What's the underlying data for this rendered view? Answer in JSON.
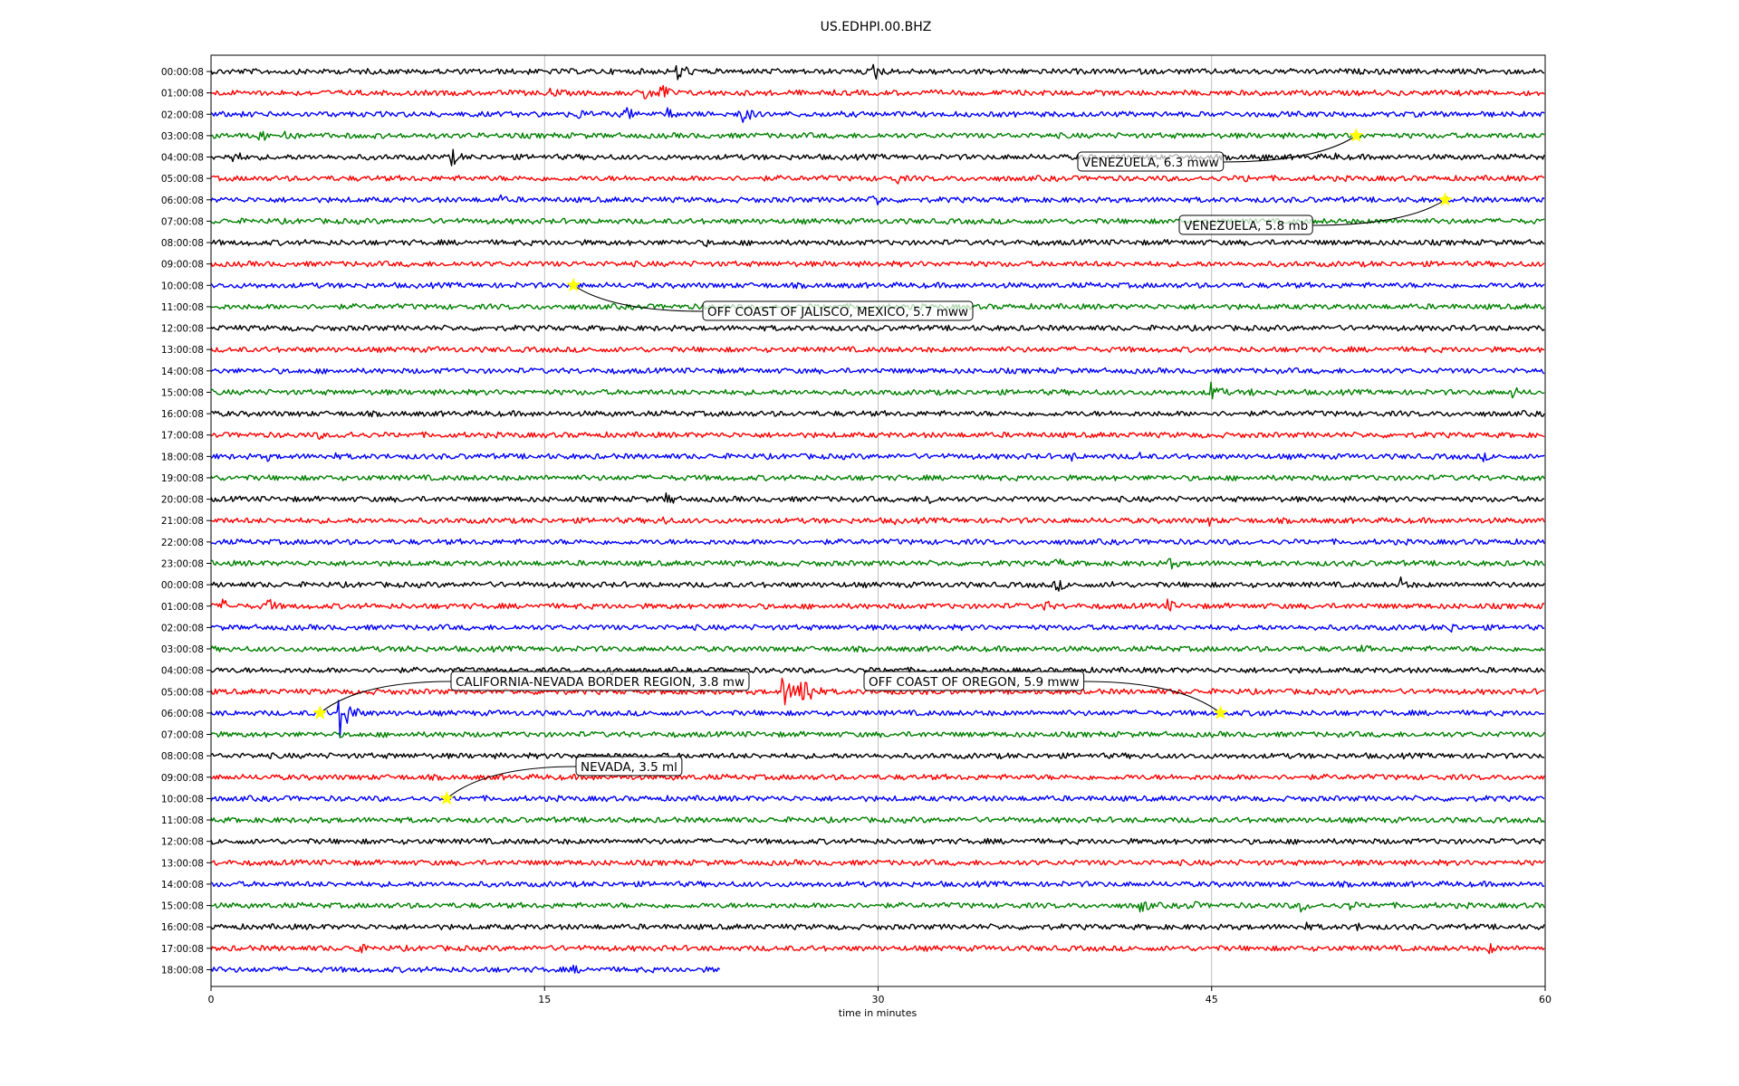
{
  "chart_data": {
    "type": "line",
    "title": "US.EDHPI.00.BHZ",
    "xlabel": "time in minutes",
    "xlim": [
      0,
      60
    ],
    "x_ticks": [
      "0",
      "15",
      "30",
      "45",
      "60"
    ],
    "grid": true,
    "trace_colors": [
      "#000000",
      "#ff0000",
      "#0000ff",
      "#008000"
    ],
    "marker_color": "#ffff00",
    "rows": [
      "00:00:08",
      "01:00:08",
      "02:00:08",
      "03:00:08",
      "04:00:08",
      "05:00:08",
      "06:00:08",
      "07:00:08",
      "08:00:08",
      "09:00:08",
      "10:00:08",
      "11:00:08",
      "12:00:08",
      "13:00:08",
      "14:00:08",
      "15:00:08",
      "16:00:08",
      "17:00:08",
      "18:00:08",
      "19:00:08",
      "20:00:08",
      "21:00:08",
      "22:00:08",
      "23:00:08",
      "00:00:08",
      "01:00:08",
      "02:00:08",
      "03:00:08",
      "04:00:08",
      "05:00:08",
      "06:00:08",
      "07:00:08",
      "08:00:08",
      "09:00:08",
      "10:00:08",
      "11:00:08",
      "12:00:08",
      "13:00:08",
      "14:00:08",
      "15:00:08",
      "16:00:08",
      "17:00:08",
      "18:00:08"
    ],
    "last_row_end_minute": 22.9,
    "events": [
      {
        "row": 3,
        "minute": 51.5,
        "label": "VENEZUELA, 6.3 mww"
      },
      {
        "row": 6,
        "minute": 55.5,
        "label": "VENEZUELA, 5.8 mb"
      },
      {
        "row": 10,
        "minute": 16.3,
        "label": "OFF COAST OF JALISCO, MEXICO, 5.7 mww"
      },
      {
        "row": 30,
        "minute": 4.9,
        "label": "CALIFORNIA-NEVADA BORDER REGION, 3.8 mw"
      },
      {
        "row": 30,
        "minute": 45.4,
        "label": "OFF COAST OF OREGON, 5.9 mww"
      },
      {
        "row": 34,
        "minute": 10.6,
        "label": "NEVADA, 3.5 ml"
      }
    ],
    "bursts": [
      {
        "row": 0,
        "minute": 21.0,
        "amp": 14
      },
      {
        "row": 0,
        "minute": 29.8,
        "amp": 12
      },
      {
        "row": 0,
        "minute": 32.6,
        "amp": 6
      },
      {
        "row": 1,
        "minute": 15.3,
        "amp": 8
      },
      {
        "row": 1,
        "minute": 19.5,
        "amp": 10
      },
      {
        "row": 1,
        "minute": 20.2,
        "amp": 14
      },
      {
        "row": 2,
        "minute": 16.5,
        "amp": 8
      },
      {
        "row": 2,
        "minute": 18.6,
        "amp": 10
      },
      {
        "row": 2,
        "minute": 20.5,
        "amp": 8
      },
      {
        "row": 2,
        "minute": 23.8,
        "amp": 14
      },
      {
        "row": 3,
        "minute": 2.2,
        "amp": 8
      },
      {
        "row": 3,
        "minute": 3.3,
        "amp": 9
      },
      {
        "row": 4,
        "minute": 1.0,
        "amp": 9
      },
      {
        "row": 4,
        "minute": 10.8,
        "amp": 11
      },
      {
        "row": 4,
        "minute": 47.2,
        "amp": 6
      },
      {
        "row": 4,
        "minute": 50.5,
        "amp": 6
      },
      {
        "row": 5,
        "minute": 30.8,
        "amp": 8
      },
      {
        "row": 5,
        "minute": 46.5,
        "amp": 6
      },
      {
        "row": 6,
        "minute": 13.0,
        "amp": 6
      },
      {
        "row": 6,
        "minute": 29.8,
        "amp": 10
      },
      {
        "row": 8,
        "minute": 22.3,
        "amp": 5
      },
      {
        "row": 15,
        "minute": 45.0,
        "amp": 14
      },
      {
        "row": 15,
        "minute": 46.8,
        "amp": 6
      },
      {
        "row": 15,
        "minute": 58.5,
        "amp": 8
      },
      {
        "row": 17,
        "minute": 4.8,
        "amp": 6
      },
      {
        "row": 17,
        "minute": 6.0,
        "amp": 7
      },
      {
        "row": 18,
        "minute": 2.5,
        "amp": 6
      },
      {
        "row": 18,
        "minute": 5.4,
        "amp": 6
      },
      {
        "row": 18,
        "minute": 38.7,
        "amp": 6
      },
      {
        "row": 18,
        "minute": 41.7,
        "amp": 6
      },
      {
        "row": 18,
        "minute": 57.2,
        "amp": 6
      },
      {
        "row": 20,
        "minute": 20.5,
        "amp": 9
      },
      {
        "row": 20,
        "minute": 32.2,
        "amp": 9
      },
      {
        "row": 21,
        "minute": 20.3,
        "amp": 7
      },
      {
        "row": 21,
        "minute": 30.8,
        "amp": 6
      },
      {
        "row": 21,
        "minute": 44.9,
        "amp": 7
      },
      {
        "row": 23,
        "minute": 38.0,
        "amp": 7
      },
      {
        "row": 23,
        "minute": 43.1,
        "amp": 8
      },
      {
        "row": 24,
        "minute": 38.0,
        "amp": 9
      },
      {
        "row": 24,
        "minute": 40.5,
        "amp": 6
      },
      {
        "row": 24,
        "minute": 53.5,
        "amp": 9
      },
      {
        "row": 25,
        "minute": 0.5,
        "amp": 9
      },
      {
        "row": 25,
        "minute": 2.5,
        "amp": 11
      },
      {
        "row": 25,
        "minute": 37.5,
        "amp": 8
      },
      {
        "row": 25,
        "minute": 43.0,
        "amp": 9
      },
      {
        "row": 26,
        "minute": 55.7,
        "amp": 8
      },
      {
        "row": 27,
        "minute": 8.8,
        "amp": 7
      },
      {
        "row": 27,
        "minute": 51.8,
        "amp": 6
      },
      {
        "row": 28,
        "minute": 17.8,
        "amp": 12
      },
      {
        "row": 29,
        "minute": 25.7,
        "amp": 20
      },
      {
        "row": 29,
        "minute": 26.5,
        "amp": 30
      },
      {
        "row": 30,
        "minute": 5.8,
        "amp": 28
      },
      {
        "row": 30,
        "minute": 47.2,
        "amp": 6
      },
      {
        "row": 39,
        "minute": 41.8,
        "amp": 10
      },
      {
        "row": 39,
        "minute": 44.0,
        "amp": 8
      },
      {
        "row": 39,
        "minute": 49.0,
        "amp": 8
      },
      {
        "row": 39,
        "minute": 51.2,
        "amp": 7
      },
      {
        "row": 40,
        "minute": 49.2,
        "amp": 6
      },
      {
        "row": 40,
        "minute": 51.5,
        "amp": 6
      },
      {
        "row": 41,
        "minute": 6.5,
        "amp": 9
      },
      {
        "row": 41,
        "minute": 57.5,
        "amp": 7
      },
      {
        "row": 42,
        "minute": 16.3,
        "amp": 6
      }
    ]
  }
}
